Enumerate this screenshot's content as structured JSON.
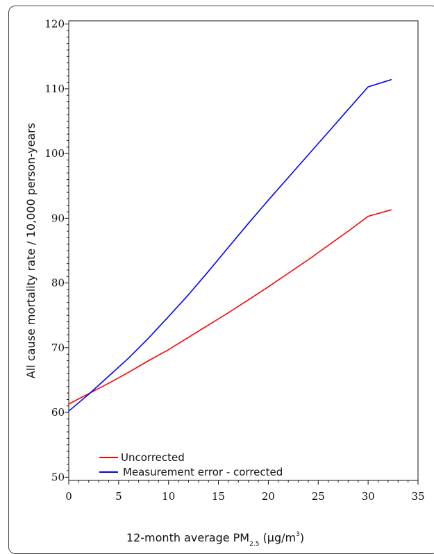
{
  "chart_data": {
    "type": "line",
    "title": "",
    "xlabel": {
      "main": "12-month average PM",
      "subscript": "2.5",
      "unit_open": " (µg/m",
      "superscript": "3",
      "unit_close": ")"
    },
    "ylabel": "All cause mortality rate / 10,000 person-years",
    "xlim": [
      0,
      35
    ],
    "ylim": [
      49.5,
      120.5
    ],
    "x_ticks": [
      0,
      5,
      10,
      15,
      20,
      25,
      30,
      35
    ],
    "y_ticks": [
      50,
      60,
      70,
      80,
      90,
      100,
      110,
      120
    ],
    "grid": false,
    "legend_position": "bottom-left",
    "series": [
      {
        "name": "Uncorrected",
        "color": "#ff0000",
        "x": [
          0,
          2,
          4,
          6,
          8,
          10,
          12,
          14,
          16,
          18,
          20,
          22,
          24,
          26,
          28,
          30,
          32.3
        ],
        "y": [
          61.3,
          62.9,
          64.5,
          66.2,
          68.0,
          69.7,
          71.6,
          73.5,
          75.4,
          77.4,
          79.4,
          81.5,
          83.6,
          85.8,
          88.0,
          90.3,
          91.3
        ]
      },
      {
        "name": "Measurement error - corrected",
        "color": "#0000ff",
        "x": [
          0,
          2,
          4,
          6,
          8,
          10,
          12,
          14,
          16,
          18,
          20,
          22,
          24,
          26,
          28,
          30,
          32.3
        ],
        "y": [
          60.2,
          62.8,
          65.6,
          68.4,
          71.5,
          74.8,
          78.2,
          81.8,
          85.5,
          89.2,
          92.8,
          96.3,
          99.8,
          103.3,
          106.8,
          110.3,
          111.4
        ]
      }
    ]
  }
}
